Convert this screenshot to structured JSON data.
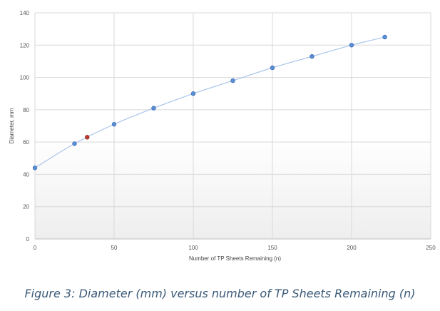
{
  "chart_data": {
    "type": "scatter",
    "xlabel": "Number of TP Sheets Remaining (n)",
    "ylabel": "Diameter, mm",
    "xlim": [
      0,
      250
    ],
    "ylim": [
      0,
      140
    ],
    "xticks": [
      0,
      50,
      100,
      150,
      200,
      250
    ],
    "yticks": [
      0,
      20,
      40,
      60,
      80,
      100,
      120,
      140
    ],
    "grid": true,
    "smooth_line": true,
    "series": [
      {
        "color": "#5b8fd6",
        "points": [
          {
            "x": 0,
            "y": 44
          },
          {
            "x": 25,
            "y": 59
          },
          {
            "x": 50,
            "y": 71
          },
          {
            "x": 75,
            "y": 81
          },
          {
            "x": 100,
            "y": 90
          },
          {
            "x": 125,
            "y": 98
          },
          {
            "x": 150,
            "y": 106
          },
          {
            "x": 175,
            "y": 113
          },
          {
            "x": 200,
            "y": 120
          },
          {
            "x": 221,
            "y": 125
          }
        ]
      },
      {
        "color": "#c0392b",
        "points": [
          {
            "x": 33,
            "y": 63
          }
        ]
      }
    ]
  },
  "caption": "Figure 3: Diameter (mm) versus number of TP Sheets Remaining (n)"
}
